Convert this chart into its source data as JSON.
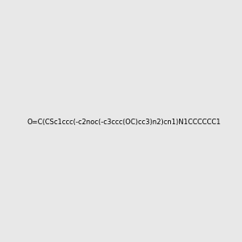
{
  "smiles": "O=C(CSc1ccc(-c2noc(-c3ccc(OC)cc3)n2)cn1)N1CCCCCC1",
  "img_size": [
    300,
    300
  ],
  "background_color": "#e8e8e8",
  "atom_colors": {
    "N": [
      0,
      0,
      1
    ],
    "O": [
      1,
      0,
      0
    ],
    "S": [
      0.8,
      0.8,
      0
    ]
  },
  "figsize": [
    3.0,
    3.0
  ],
  "dpi": 100
}
